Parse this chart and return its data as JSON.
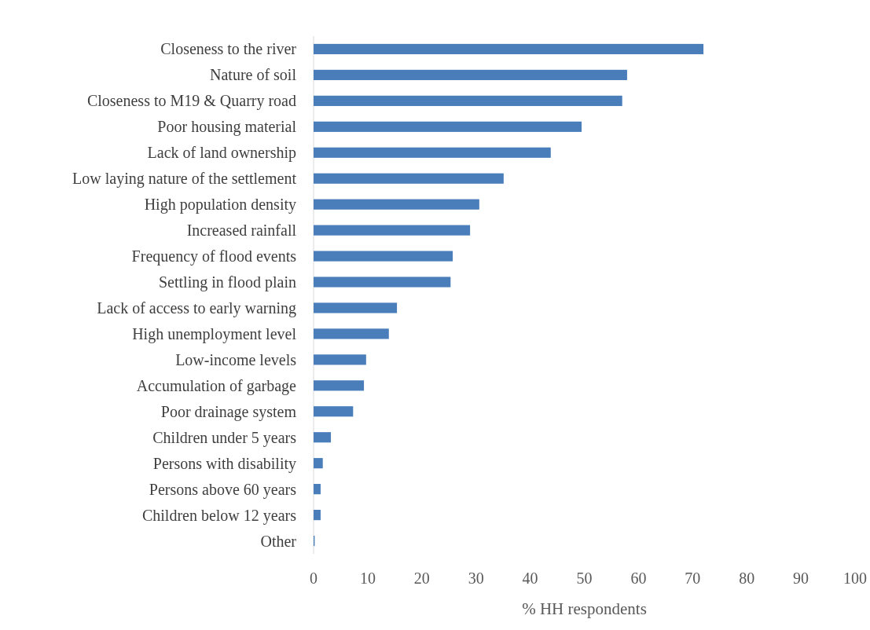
{
  "chart_data": {
    "type": "bar",
    "orientation": "horizontal",
    "xlabel": "% HH respondents",
    "categories": [
      "Closeness to the river",
      "Nature of soil",
      "Closeness to M19 & Quarry road",
      "Poor housing material",
      "Lack of land ownership",
      "Low laying nature of the settlement",
      "High population density",
      "Increased rainfall",
      "Frequency of flood events",
      "Settling in flood plain",
      "Lack of access to early warning",
      "High unemployment level",
      "Low-income levels",
      "Accumulation of garbage",
      "Poor drainage system",
      "Children under 5 years",
      "Persons with disability",
      "Persons above 60 years",
      "Children below 12 years",
      "Other"
    ],
    "values": [
      72,
      57.9,
      57,
      49.5,
      43.8,
      35.1,
      30.6,
      28.9,
      25.7,
      25.3,
      15.4,
      13.9,
      9.7,
      9.3,
      7.3,
      3.2,
      1.7,
      1.3,
      1.3,
      0.2
    ],
    "color": "#4a7ebb",
    "xlim": [
      0,
      100
    ],
    "xticks": [
      0,
      10,
      20,
      30,
      40,
      50,
      60,
      70,
      80,
      90,
      100
    ]
  }
}
